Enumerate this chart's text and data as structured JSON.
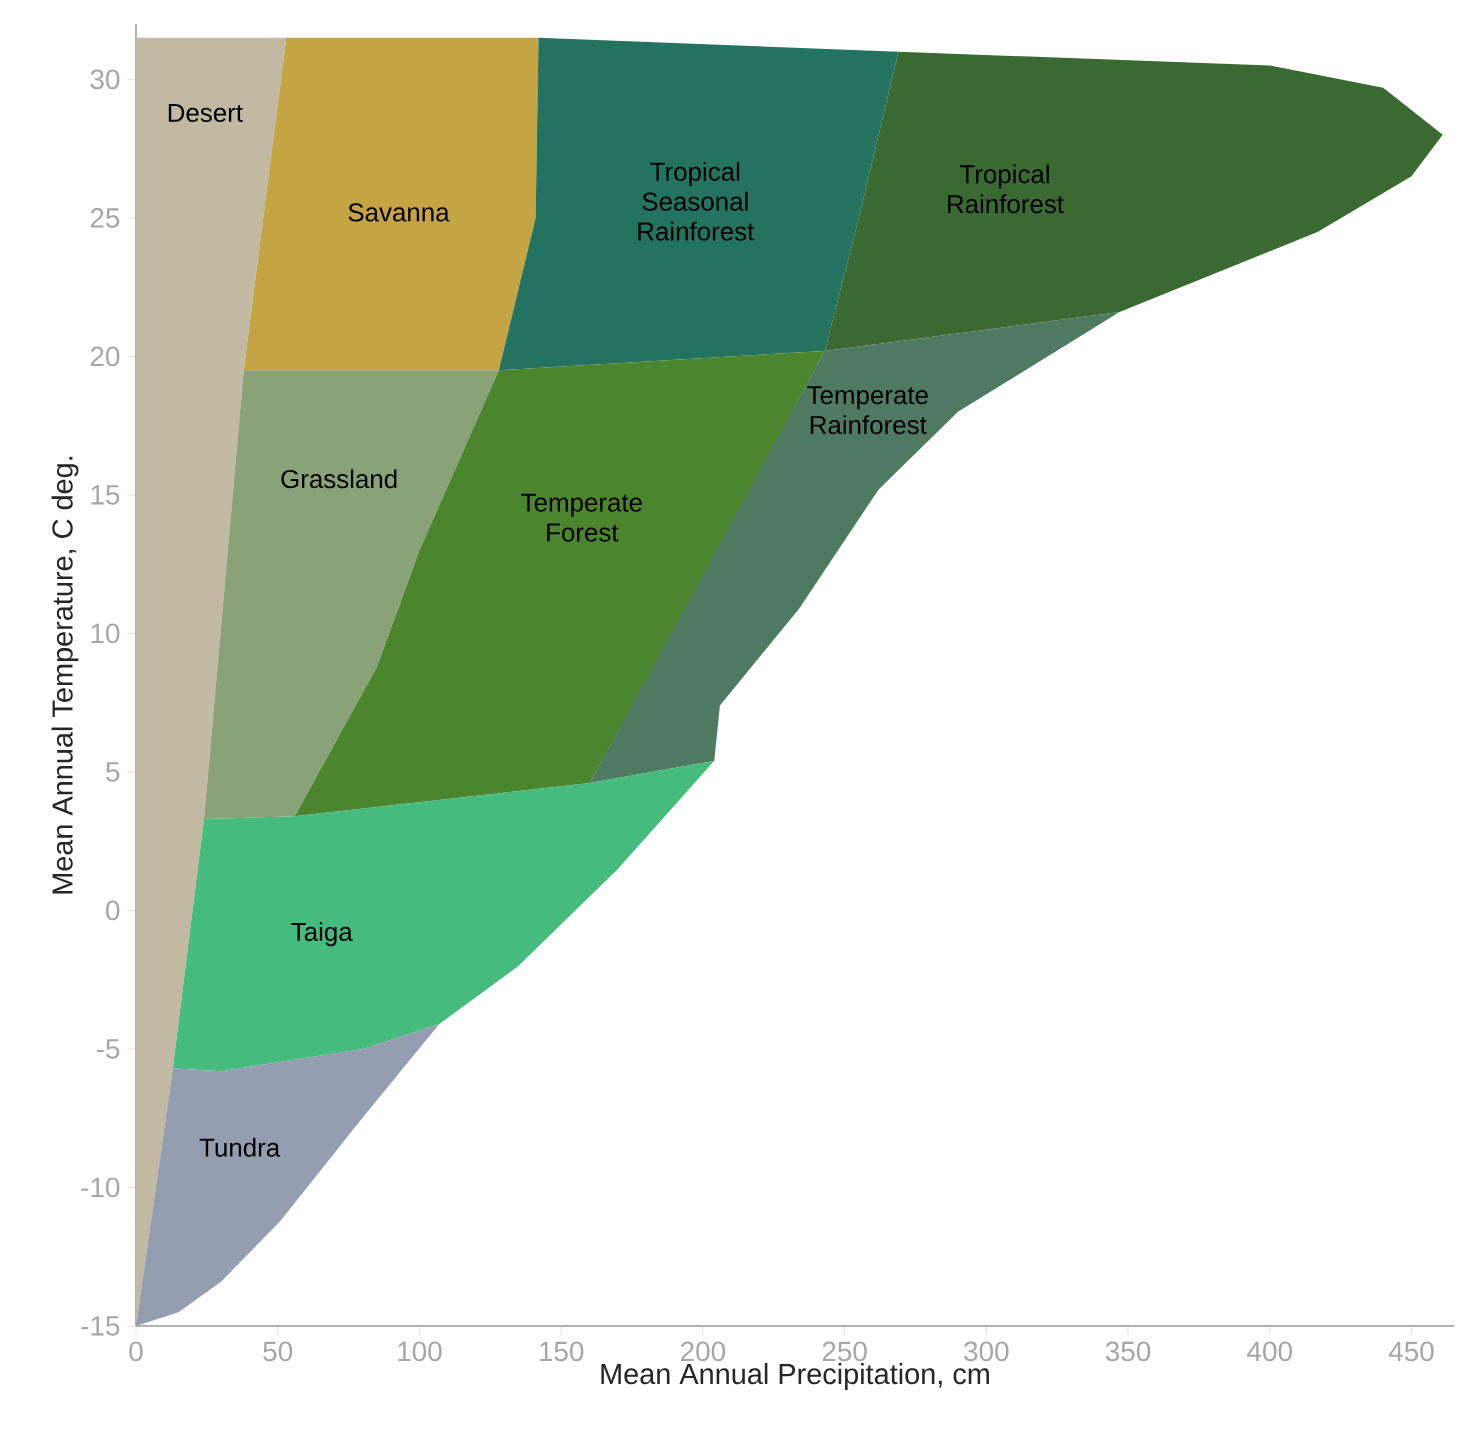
{
  "chart_data": {
    "type": "area",
    "xlabel": "Mean Annual Precipitation, cm",
    "ylabel": "Mean Annual Temperature, C deg.",
    "xlim": [
      0,
      465
    ],
    "ylim": [
      -15,
      32
    ],
    "xticks": [
      0,
      50,
      100,
      150,
      200,
      250,
      300,
      350,
      400,
      450
    ],
    "yticks": [
      -15,
      -10,
      -5,
      0,
      5,
      10,
      15,
      20,
      25,
      30
    ],
    "series": [
      {
        "name": "Desert",
        "color": "#c2b9a3",
        "x": [
          0,
          13,
          24,
          38,
          53,
          0
        ],
        "values": [
          -15,
          -5.7,
          3.3,
          19.5,
          31.5,
          31.5
        ]
      },
      {
        "name": "Savanna",
        "color": "#c4a443",
        "x": [
          38,
          53,
          142,
          141,
          128
        ],
        "values": [
          19.5,
          31.5,
          31.5,
          25,
          19.5
        ]
      },
      {
        "name": "Tropical Seasonal Rainforest",
        "color": "#237360",
        "x": [
          142,
          269,
          255,
          243,
          128,
          141
        ],
        "values": [
          31.5,
          31,
          25,
          20.2,
          19.5,
          25
        ]
      },
      {
        "name": "Tropical Rainforest",
        "color": "#3a6a32",
        "x": [
          269,
          400,
          440,
          461,
          450,
          417,
          347,
          243,
          255
        ],
        "values": [
          31,
          30.5,
          29.7,
          28,
          26.5,
          24.5,
          21.6,
          20.2,
          25
        ]
      },
      {
        "name": "Grassland",
        "color": "#8aa277",
        "x": [
          24,
          38,
          128,
          100,
          85,
          56
        ],
        "values": [
          3.3,
          19.5,
          19.5,
          13,
          8.8,
          3.4
        ]
      },
      {
        "name": "Temperate Forest",
        "color": "#4b862f",
        "x": [
          56,
          85,
          100,
          128,
          243,
          200,
          160
        ],
        "values": [
          3.4,
          8.8,
          13,
          19.5,
          20.2,
          12,
          4.6
        ]
      },
      {
        "name": "Temperate Rainforest",
        "color": "#4f7a62",
        "x": [
          160,
          243,
          347,
          290,
          262,
          234,
          206,
          204
        ],
        "values": [
          4.6,
          20.2,
          21.6,
          18,
          15.2,
          10.9,
          7.4,
          5.4
        ]
      },
      {
        "name": "Taiga",
        "color": "#45bb7e",
        "x": [
          13,
          24,
          56,
          160,
          204,
          170,
          135,
          107,
          80,
          30
        ],
        "values": [
          -5.7,
          3.3,
          3.4,
          4.6,
          5.4,
          1.5,
          -2,
          -4.1,
          -5,
          -5.8
        ]
      },
      {
        "name": "Tundra",
        "color": "#959db1",
        "x": [
          0,
          13,
          30,
          80,
          107,
          79,
          51,
          30,
          15
        ],
        "values": [
          -15,
          -5.7,
          -5.8,
          -5,
          -4.1,
          -7.6,
          -11.2,
          -13.4,
          -14.5
        ]
      }
    ]
  }
}
